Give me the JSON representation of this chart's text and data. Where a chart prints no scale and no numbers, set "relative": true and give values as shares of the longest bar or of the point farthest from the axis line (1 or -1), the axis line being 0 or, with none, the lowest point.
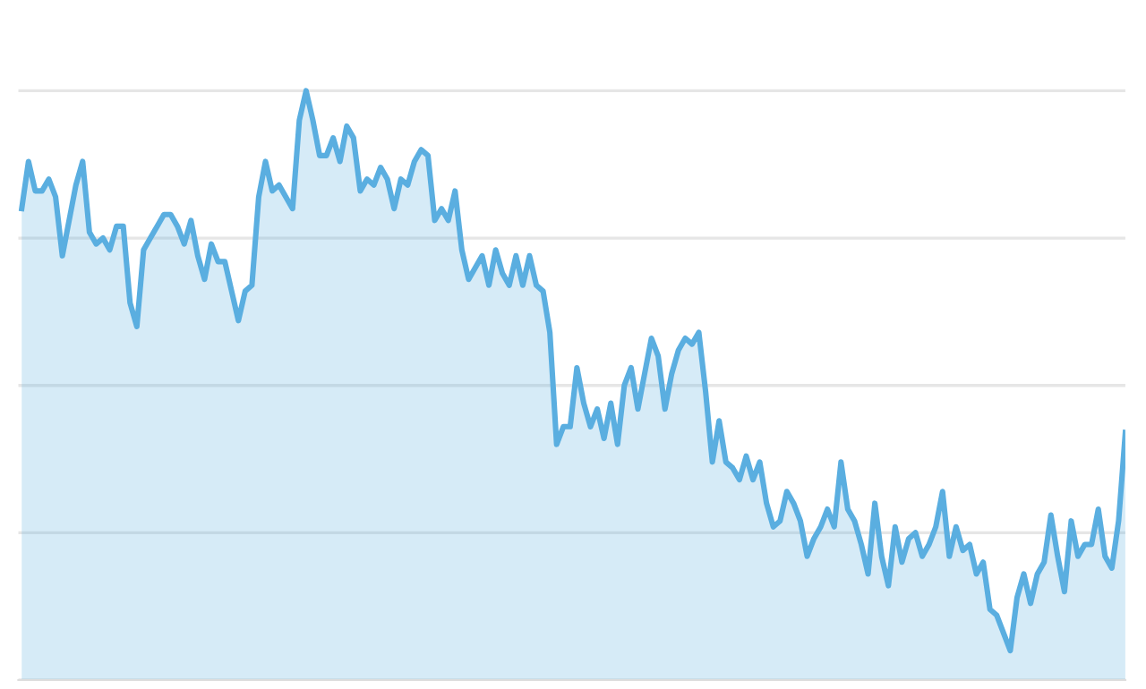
{
  "chart_data": {
    "type": "area",
    "relative": true,
    "grid": "y",
    "color": "#5aaee0",
    "categories": [
      null,
      null,
      null,
      null,
      null,
      null,
      null,
      null,
      null,
      null,
      null,
      null,
      null,
      null,
      null,
      null,
      null,
      null,
      null,
      null,
      null,
      null,
      null,
      null,
      null,
      null,
      null,
      null,
      null,
      null,
      null,
      null,
      null,
      null,
      null,
      null,
      null,
      null,
      null,
      null,
      null,
      null,
      null,
      null,
      null,
      null,
      null,
      null,
      null,
      null,
      null,
      null,
      null,
      null,
      null,
      null,
      null,
      null,
      null,
      null,
      null,
      null,
      null,
      null,
      null,
      null,
      null,
      null,
      null,
      null,
      null,
      null,
      null,
      null,
      null,
      null,
      null,
      null,
      null,
      null,
      null,
      null,
      null,
      null,
      null,
      null,
      null,
      null,
      null,
      null,
      null,
      null,
      null,
      null,
      null,
      null,
      null,
      null,
      null,
      null,
      null,
      null,
      null,
      null,
      null,
      null,
      null,
      null,
      null,
      null,
      null,
      null,
      null,
      null,
      null,
      null,
      null,
      null,
      null,
      null,
      null,
      null,
      null,
      null,
      null,
      null,
      null,
      null,
      null,
      null,
      null,
      null,
      null,
      null,
      null,
      null,
      null,
      null,
      null,
      null,
      null,
      null,
      null,
      null,
      null,
      null,
      null,
      null,
      null,
      null,
      null,
      null,
      null,
      null,
      null,
      null,
      null,
      null,
      null,
      null,
      null,
      null,
      null,
      null
    ],
    "values": [
      0.8,
      0.88,
      0.83,
      0.83,
      0.85,
      0.82,
      0.72,
      0.78,
      0.84,
      0.88,
      0.76,
      0.74,
      0.75,
      0.73,
      0.77,
      0.77,
      0.64,
      0.6,
      0.73,
      0.75,
      0.77,
      0.79,
      0.79,
      0.77,
      0.74,
      0.78,
      0.72,
      0.68,
      0.74,
      0.71,
      0.71,
      0.66,
      0.61,
      0.66,
      0.67,
      0.82,
      0.88,
      0.83,
      0.84,
      0.82,
      0.8,
      0.95,
      1.0,
      0.95,
      0.89,
      0.89,
      0.92,
      0.88,
      0.94,
      0.92,
      0.83,
      0.85,
      0.84,
      0.87,
      0.85,
      0.8,
      0.85,
      0.84,
      0.88,
      0.9,
      0.89,
      0.78,
      0.8,
      0.78,
      0.83,
      0.73,
      0.68,
      0.7,
      0.72,
      0.67,
      0.73,
      0.69,
      0.67,
      0.72,
      0.67,
      0.72,
      0.67,
      0.66,
      0.59,
      0.4,
      0.43,
      0.43,
      0.53,
      0.47,
      0.43,
      0.46,
      0.41,
      0.47,
      0.4,
      0.5,
      0.53,
      0.46,
      0.52,
      0.58,
      0.55,
      0.46,
      0.52,
      0.56,
      0.58,
      0.57,
      0.59,
      0.49,
      0.37,
      0.44,
      0.37,
      0.36,
      0.34,
      0.38,
      0.34,
      0.37,
      0.3,
      0.26,
      0.27,
      0.32,
      0.3,
      0.27,
      0.21,
      0.24,
      0.26,
      0.29,
      0.26,
      0.37,
      0.29,
      0.27,
      0.23,
      0.18,
      0.3,
      0.21,
      0.16,
      0.26,
      0.2,
      0.24,
      0.25,
      0.21,
      0.23,
      0.26,
      0.32,
      0.21,
      0.26,
      0.22,
      0.23,
      0.18,
      0.2,
      0.12,
      0.11,
      0.08,
      0.05,
      0.14,
      0.18,
      0.13,
      0.18,
      0.2,
      0.28,
      0.21,
      0.15,
      0.27,
      0.21,
      0.23,
      0.23,
      0.29,
      0.21,
      0.19,
      0.27,
      0.42
    ]
  }
}
